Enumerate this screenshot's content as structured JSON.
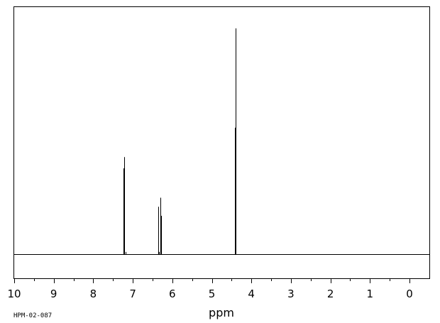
{
  "chart_data": {
    "type": "line",
    "title": "",
    "xlabel": "ppm",
    "ylabel": "",
    "xlim": [
      10.3,
      -0.5
    ],
    "x_reversed": true,
    "major_ticks": [
      10,
      9,
      8,
      7,
      6,
      5,
      4,
      3,
      2,
      1,
      0
    ],
    "tick_labels": [
      "10",
      "9",
      "8",
      "7",
      "6",
      "5",
      "4",
      "3",
      "2",
      "1",
      "0"
    ],
    "minor_ticks": [
      9.5,
      8.5,
      7.5,
      6.5,
      5.5,
      4.5,
      3.5,
      2.5,
      1.5,
      0.5
    ],
    "grid": false,
    "peaks": [
      {
        "ppm": 7.23,
        "intensity": 0.38
      },
      {
        "ppm": 7.21,
        "intensity": 0.43
      },
      {
        "ppm": 7.19,
        "intensity": 0.01
      },
      {
        "ppm": 6.35,
        "intensity": 0.21
      },
      {
        "ppm": 6.33,
        "intensity": 0.01
      },
      {
        "ppm": 6.31,
        "intensity": 0.25
      },
      {
        "ppm": 6.29,
        "intensity": 0.17
      },
      {
        "ppm": 4.41,
        "intensity": 0.56
      },
      {
        "ppm": 4.39,
        "intensity": 1.0
      }
    ]
  },
  "labels": {
    "xlabel": "ppm",
    "sample_code": "HPM-02-087"
  }
}
